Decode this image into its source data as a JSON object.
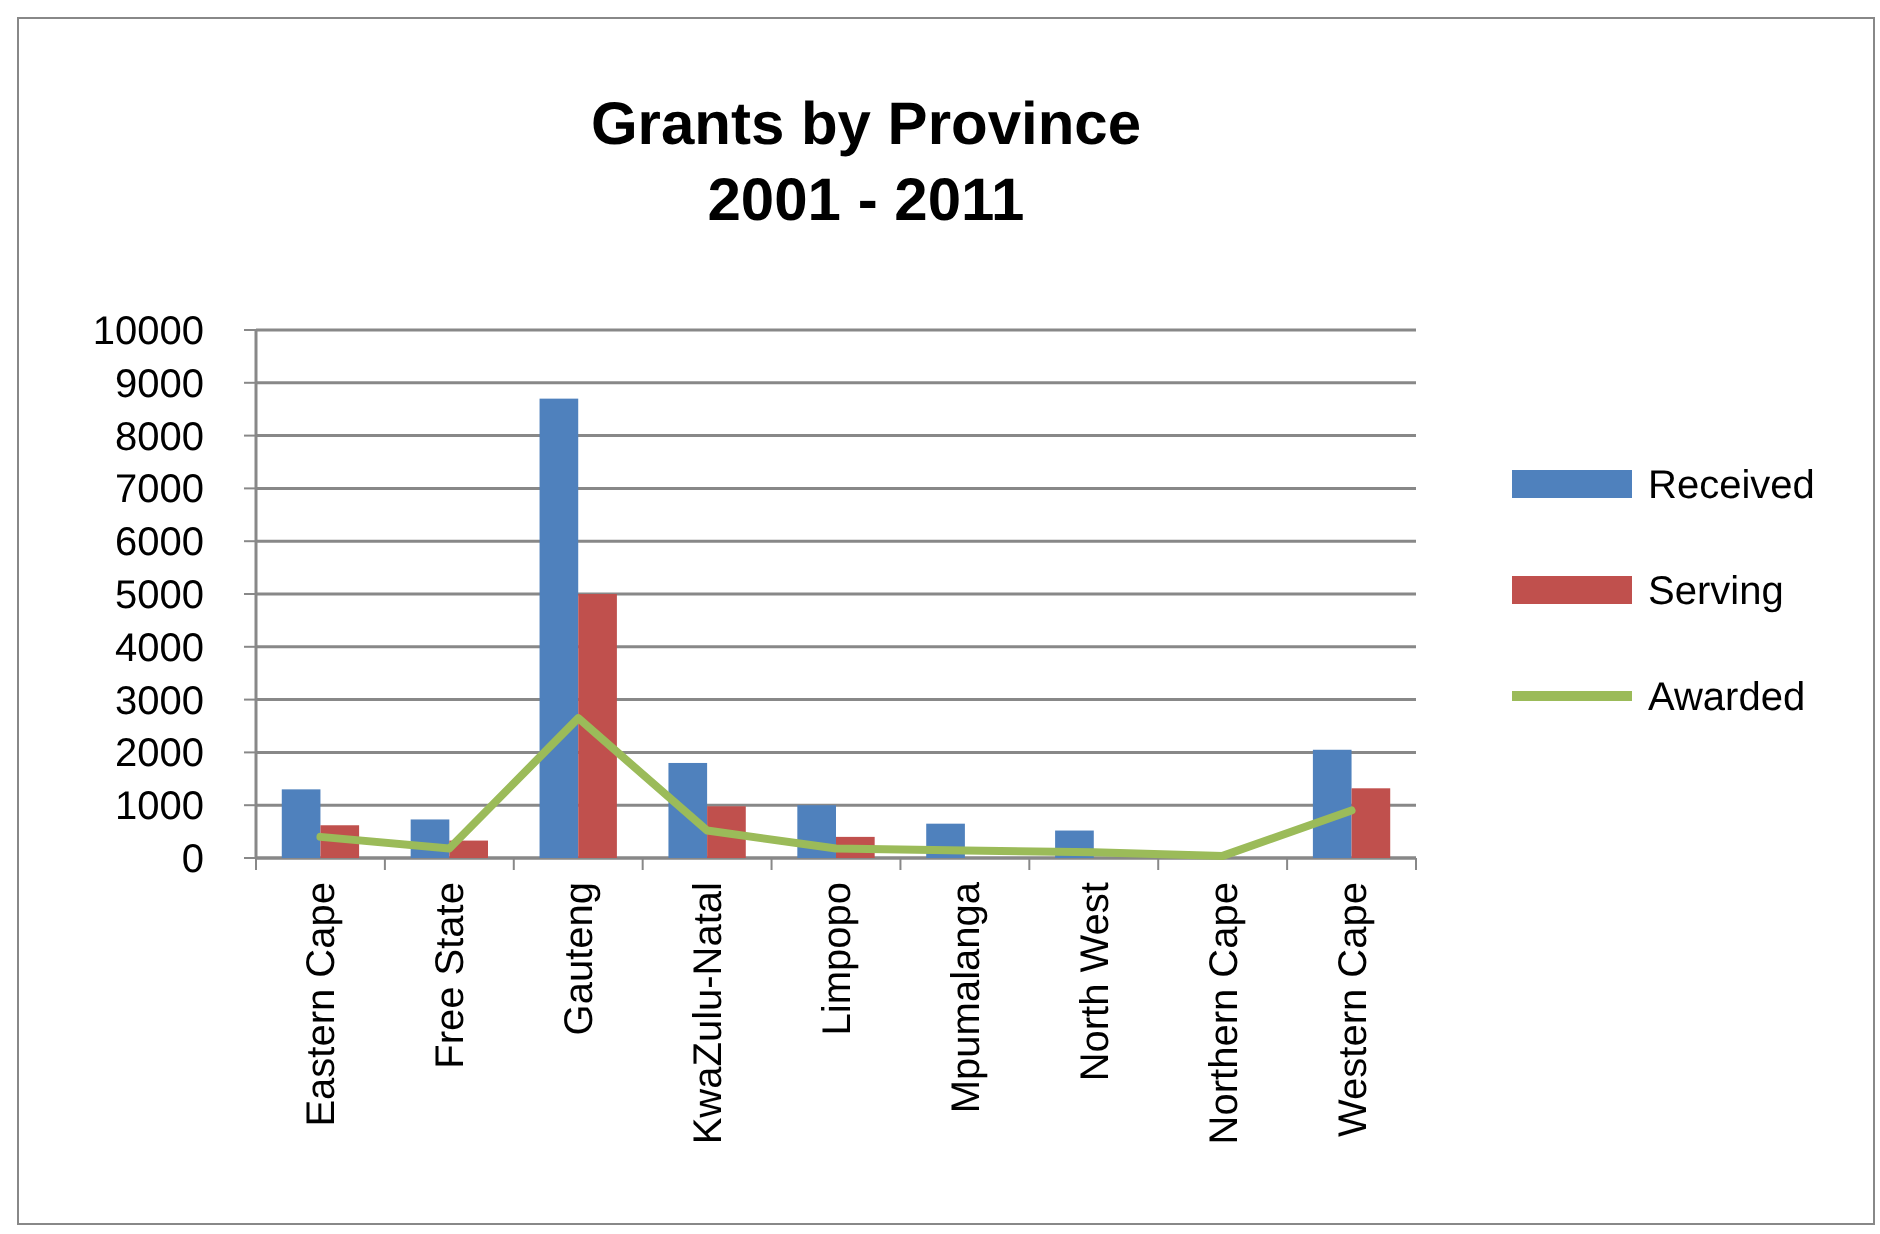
{
  "chart_data": {
    "type": "bar",
    "title": "Grants by Province\n2001 - 2011",
    "categories": [
      "Eastern Cape",
      "Free State",
      "Gauteng",
      "KwaZulu-Natal",
      "Limpopo",
      "Mpumalanga",
      "North West",
      "Northern Cape",
      "Western Cape"
    ],
    "series": [
      {
        "name": "Received",
        "color": "#4f81bd",
        "values": [
          1300,
          730,
          8700,
          1800,
          1000,
          650,
          520,
          null,
          2050
        ]
      },
      {
        "name": "Serving",
        "color": "#c0504d",
        "values": [
          620,
          330,
          5000,
          980,
          400,
          null,
          null,
          null,
          1320
        ]
      },
      {
        "name": "Awarded",
        "type": "line",
        "color": "#9bbb59",
        "values": [
          400,
          180,
          2650,
          520,
          180,
          140,
          110,
          40,
          900
        ]
      }
    ],
    "ylim": [
      0,
      10000
    ],
    "yticks": [
      0,
      1000,
      2000,
      3000,
      4000,
      5000,
      6000,
      7000,
      8000,
      9000,
      10000
    ],
    "grid": "y",
    "legend": "right",
    "marker": "none",
    "line_style": "solid"
  }
}
